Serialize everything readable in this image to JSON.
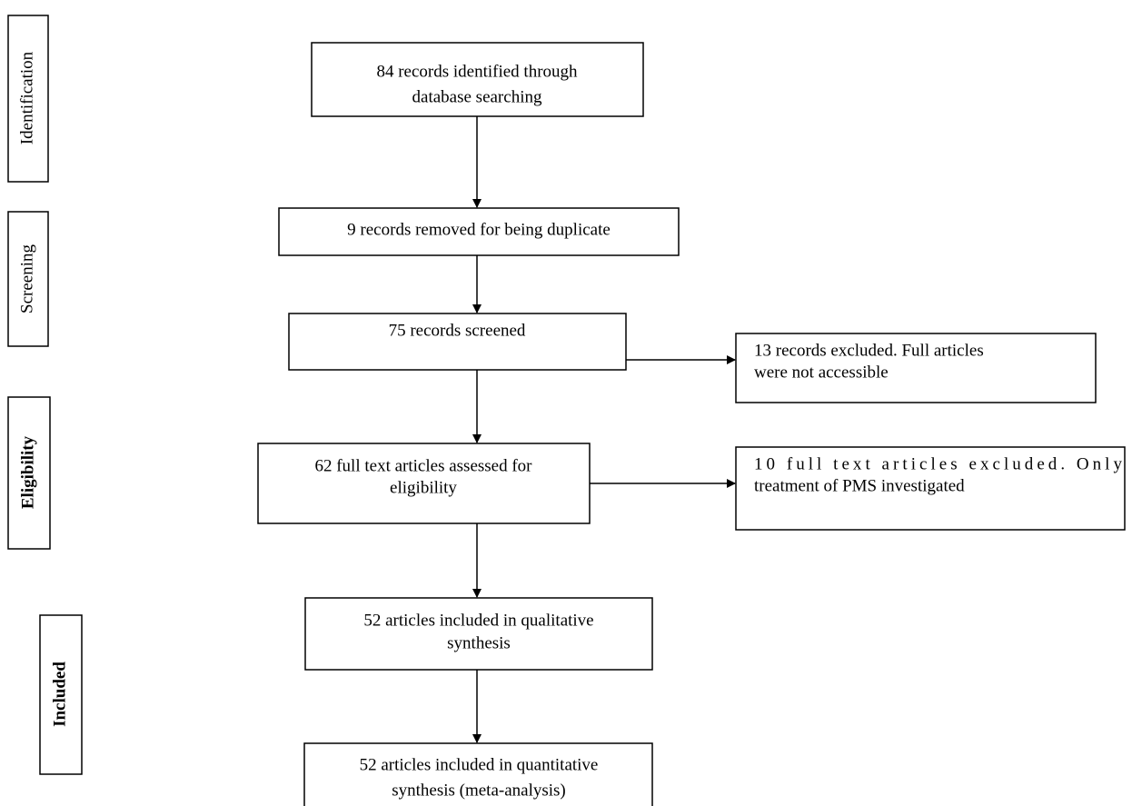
{
  "stages": [
    {
      "label": "Identification"
    },
    {
      "label": "Screening"
    },
    {
      "label": "Eligibility"
    },
    {
      "label": "Included"
    }
  ],
  "nodes": [
    {
      "lines": [
        "84 records identified through",
        "database searching"
      ]
    },
    {
      "lines": [
        "9 records removed for being duplicate"
      ]
    },
    {
      "lines": [
        "75 records screened"
      ]
    },
    {
      "lines": [
        "13 records excluded. Full articles",
        "were not accessible"
      ]
    },
    {
      "lines": [
        "62 full text articles assessed for",
        "eligibility"
      ]
    },
    {
      "lines": [
        "10 full text articles excluded. Only",
        "treatment of PMS investigated"
      ]
    },
    {
      "lines": [
        "52 articles included in qualitative",
        "synthesis"
      ]
    },
    {
      "lines": [
        "52 articles included in quantitative",
        "synthesis (meta-analysis)"
      ]
    }
  ]
}
